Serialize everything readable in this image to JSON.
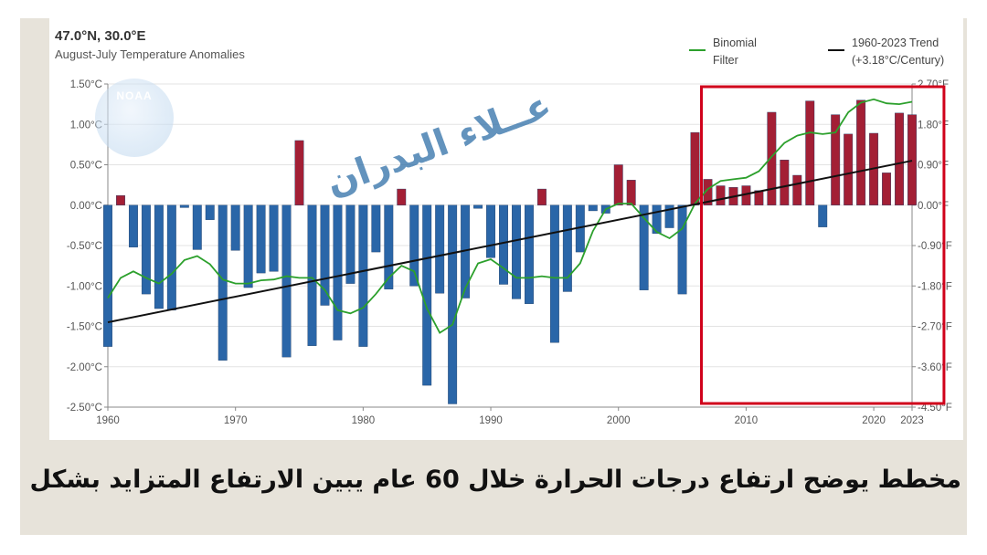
{
  "header": {
    "location": "47.0°N, 30.0°E",
    "subtitle": "August-July Temperature Anomalies"
  },
  "legend": {
    "items": [
      {
        "label_line1": "Binomial",
        "label_line2": "Filter",
        "color": "#2ca02c"
      },
      {
        "label_line1": "1960-2023 Trend",
        "label_line2": "(+3.18°C/Century)",
        "color": "#111111"
      }
    ]
  },
  "watermark": {
    "text": "عــلاء البدران",
    "logo": "NOAA"
  },
  "caption": {
    "text": "مخطط يوضح ارتفاع  درجات الحرارة خلال  60  عام يبين الارتفاع المتزايد بشكل  خطير"
  },
  "colors": {
    "positive_bar": "#a31f35",
    "negative_bar": "#2a66a8",
    "filter_line": "#2ca02c",
    "trend_line": "#111111",
    "highlight_box": "#d0021b"
  },
  "chart_data": {
    "type": "bar",
    "title": "August-July Temperature Anomalies",
    "ylim": [
      -2.5,
      1.5
    ],
    "y_left_ticks": [
      "1.50°C",
      "1.00°C",
      "0.50°C",
      "0.00°C",
      "-0.50°C",
      "-1.00°C",
      "-1.50°C",
      "-2.00°C",
      "-2.50°C"
    ],
    "y_right_ticks": [
      "2.70°F",
      "1.80°F",
      "0.90°F",
      "0.00°F",
      "-0.90°F",
      "-1.80°F",
      "-2.70°F",
      "-3.60°F",
      "-4.50°F"
    ],
    "x_ticks": [
      "1960",
      "1970",
      "1980",
      "1990",
      "2000",
      "2010",
      "2020",
      "2023"
    ],
    "years": [
      1960,
      1961,
      1962,
      1963,
      1964,
      1965,
      1966,
      1967,
      1968,
      1969,
      1970,
      1971,
      1972,
      1973,
      1974,
      1975,
      1976,
      1977,
      1978,
      1979,
      1980,
      1981,
      1982,
      1983,
      1984,
      1985,
      1986,
      1987,
      1988,
      1989,
      1990,
      1991,
      1992,
      1993,
      1994,
      1995,
      1996,
      1997,
      1998,
      1999,
      2000,
      2001,
      2002,
      2003,
      2004,
      2005,
      2006,
      2007,
      2008,
      2009,
      2010,
      2011,
      2012,
      2013,
      2014,
      2015,
      2016,
      2017,
      2018,
      2019,
      2020,
      2021,
      2022,
      2023
    ],
    "series": [
      {
        "name": "Annual Anomaly",
        "values": [
          -1.75,
          0.12,
          -0.52,
          -1.1,
          -1.28,
          -1.3,
          -0.03,
          -0.55,
          -0.18,
          -1.92,
          -0.56,
          -1.02,
          -0.84,
          -0.82,
          -1.88,
          0.8,
          -1.74,
          -1.24,
          -1.67,
          -0.97,
          -1.75,
          -0.58,
          -1.04,
          0.2,
          -1.0,
          -2.23,
          -1.09,
          -2.46,
          -1.15,
          -0.04,
          -0.65,
          -0.98,
          -1.16,
          -1.22,
          0.2,
          -1.7,
          -1.07,
          -0.58,
          -0.07,
          -0.1,
          0.5,
          0.31,
          -1.05,
          -0.35,
          -0.28,
          -1.1,
          0.9,
          0.32,
          0.24,
          0.22,
          0.24,
          0.18,
          1.15,
          0.56,
          0.37,
          1.29,
          -0.27,
          1.12,
          0.88,
          1.3,
          0.89,
          0.4,
          1.14,
          1.12
        ]
      },
      {
        "name": "Binomial Filter",
        "values": [
          -1.15,
          -0.9,
          -0.82,
          -0.9,
          -0.97,
          -0.85,
          -0.68,
          -0.63,
          -0.73,
          -0.92,
          -0.97,
          -0.97,
          -0.93,
          -0.92,
          -0.88,
          -0.9,
          -0.9,
          -1.05,
          -1.3,
          -1.34,
          -1.27,
          -1.1,
          -0.9,
          -0.75,
          -0.82,
          -1.28,
          -1.58,
          -1.48,
          -1.03,
          -0.72,
          -0.67,
          -0.78,
          -0.9,
          -0.9,
          -0.88,
          -0.9,
          -0.9,
          -0.72,
          -0.32,
          -0.05,
          0.02,
          0.02,
          -0.16,
          -0.33,
          -0.41,
          -0.29,
          0.02,
          0.2,
          0.3,
          0.32,
          0.34,
          0.42,
          0.6,
          0.77,
          0.86,
          0.9,
          0.88,
          0.9,
          1.15,
          1.27,
          1.31,
          1.26,
          1.25,
          1.28
        ]
      },
      {
        "name": "1960-2023 Trend",
        "values": [
          -1.45,
          0.55
        ]
      }
    ]
  }
}
